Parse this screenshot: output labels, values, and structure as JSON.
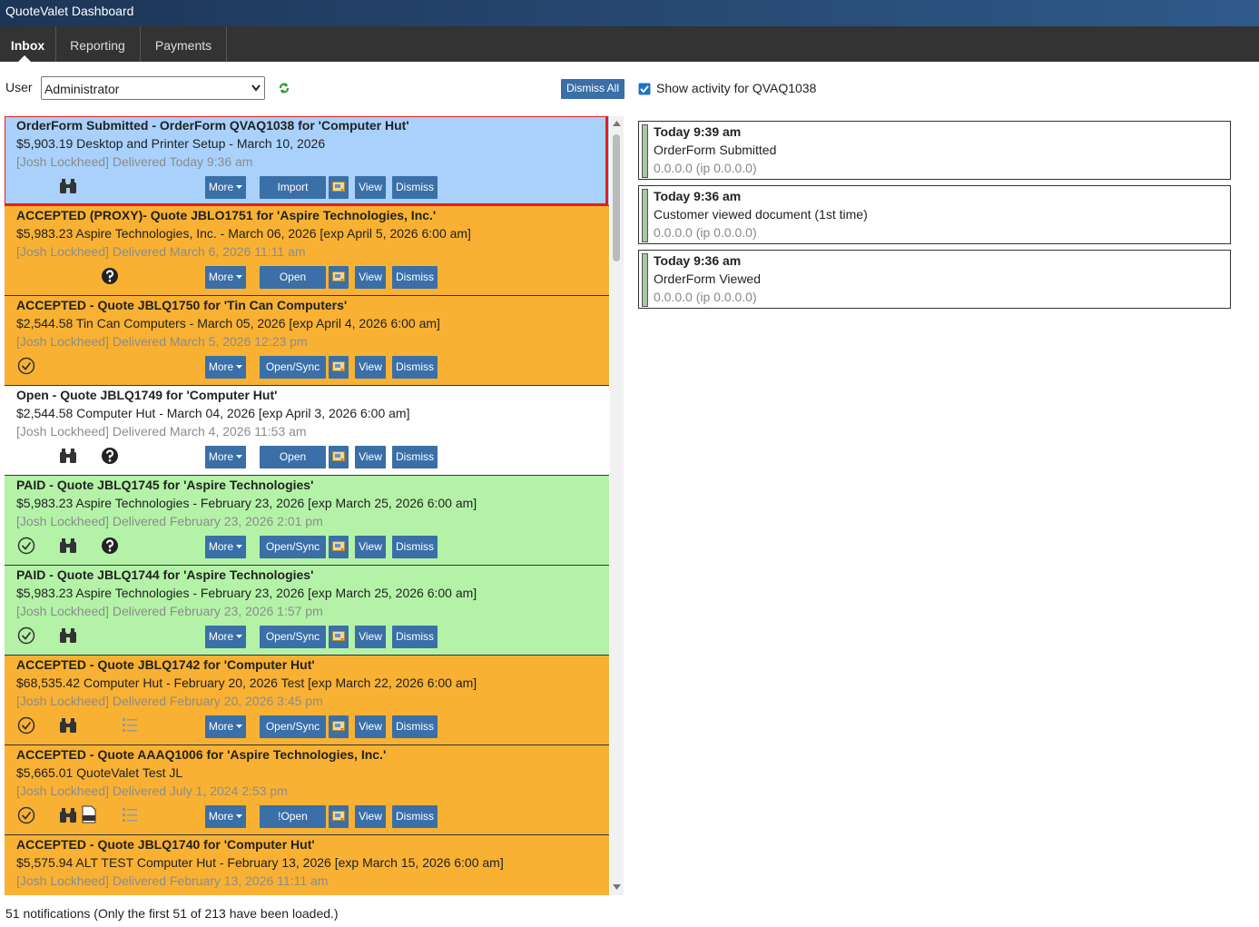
{
  "header": {
    "title": "QuoteValet Dashboard"
  },
  "tabs": [
    "Inbox",
    "Reporting",
    "Payments"
  ],
  "toolbar": {
    "user_label": "User",
    "user_select": "Administrator",
    "dismiss_all": "Dismiss All",
    "show_activity": "Show activity for QVAQ1038"
  },
  "button_labels": {
    "more": "More",
    "view": "View",
    "dismiss": "Dismiss"
  },
  "notifications": [
    {
      "title": "OrderForm Submitted - OrderForm QVAQ1038 for 'Computer Hut'",
      "details": "$5,903.19 Desktop and Printer Setup - March 10, 2026",
      "delivered": "[Josh Lockheed] Delivered Today 9:36 am",
      "action": "Import"
    },
    {
      "title": "ACCEPTED (PROXY)- Quote JBLO1751 for 'Aspire Technologies, Inc.'",
      "details": "$5,983.23 Aspire Technologies, Inc. - March 06, 2026 [exp April 5, 2026 6:00 am]",
      "delivered": "[Josh Lockheed] Delivered March 6, 2026 11:11 am",
      "action": "Open"
    },
    {
      "title": "ACCEPTED - Quote JBLQ1750 for 'Tin Can Computers'",
      "details": "$2,544.58 Tin Can Computers - March 05, 2026 [exp April 4, 2026 6:00 am]",
      "delivered": "[Josh Lockheed] Delivered March 5, 2026 12:23 pm",
      "action": "Open/Sync"
    },
    {
      "title": "Open - Quote JBLQ1749 for 'Computer Hut'",
      "details": "$2,544.58 Computer Hut - March 04, 2026 [exp April 3, 2026 6:00 am]",
      "delivered": "[Josh Lockheed] Delivered March 4, 2026 11:53 am",
      "action": "Open"
    },
    {
      "title": "PAID - Quote JBLQ1745 for 'Aspire Technologies'",
      "details": "$5,983.23 Aspire Technologies - February 23, 2026 [exp March 25, 2026 6:00 am]",
      "delivered": "[Josh Lockheed] Delivered February 23, 2026 2:01 pm",
      "action": "Open/Sync"
    },
    {
      "title": "PAID - Quote JBLQ1744 for 'Aspire Technologies'",
      "details": "$5,983.23 Aspire Technologies - February 23, 2026 [exp March 25, 2026 6:00 am]",
      "delivered": "[Josh Lockheed] Delivered February 23, 2026 1:57 pm",
      "action": "Open/Sync"
    },
    {
      "title": "ACCEPTED - Quote JBLQ1742 for 'Computer Hut'",
      "details": "$68,535.42 Computer Hut - February 20, 2026 Test [exp March 22, 2026 6:00 am]",
      "delivered": "[Josh Lockheed] Delivered February 20, 2026 3:45 pm",
      "action": "Open/Sync"
    },
    {
      "title": "ACCEPTED - Quote AAAQ1006 for 'Aspire Technologies, Inc.'",
      "details": "$5,665.01 QuoteValet Test JL",
      "delivered": "[Josh Lockheed] Delivered July 1, 2024 2:53 pm",
      "action": "!Open"
    },
    {
      "title": "ACCEPTED - Quote JBLQ1740 for 'Computer Hut'",
      "details": "$5,575.94 ALT TEST Computer Hut - February 13, 2026 [exp March 15, 2026 6:00 am]",
      "delivered": "[Josh Lockheed] Delivered February 13, 2026 11:11 am"
    }
  ],
  "activity": [
    {
      "time": "Today 9:39 am",
      "event": "OrderForm Submitted",
      "ip": "0.0.0.0 (ip 0.0.0.0)"
    },
    {
      "time": "Today 9:36 am",
      "event": "Customer viewed document (1st time)",
      "ip": "0.0.0.0 (ip 0.0.0.0)"
    },
    {
      "time": "Today 9:36 am",
      "event": "OrderForm Viewed",
      "ip": "0.0.0.0 (ip 0.0.0.0)"
    }
  ],
  "footer": "51 notifications (Only the first 51 of 213 have been loaded.)"
}
